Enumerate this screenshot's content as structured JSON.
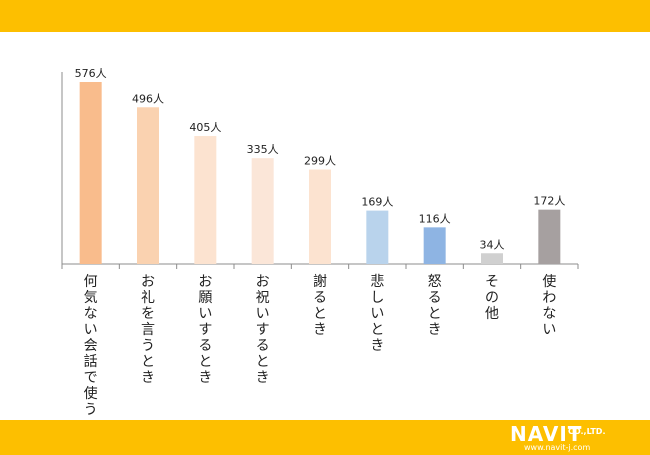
{
  "chart_data": {
    "type": "bar",
    "title": "",
    "xlabel": "",
    "ylabel": "",
    "categories": [
      "何気ない会話で使う",
      "お礼を言うとき",
      "お願いするとき",
      "お祝いするとき",
      "謝るとき",
      "悲しいとき",
      "怒るとき",
      "その他",
      "使わない"
    ],
    "values": [
      576,
      496,
      405,
      335,
      299,
      169,
      116,
      34,
      172
    ],
    "value_labels": [
      "576人",
      "496人",
      "405人",
      "335人",
      "299人",
      "169人",
      "116人",
      "34人",
      "172人"
    ],
    "colors": [
      "#F9BC8C",
      "#FAD2B0",
      "#FCE3D0",
      "#FBE6D8",
      "#FCE3D0",
      "#B9D3EC",
      "#8EB4E3",
      "#D0D0D0",
      "#A6A0A0"
    ],
    "ylim": [
      0,
      576
    ],
    "grid": false,
    "legend": "none"
  },
  "logo": {
    "brand": "NAVIT",
    "suffix": "CO.,LTD.",
    "url": "www.navit-j.com"
  },
  "colors": {
    "band": "#FDBF00",
    "axis": "#8C8C8C"
  }
}
